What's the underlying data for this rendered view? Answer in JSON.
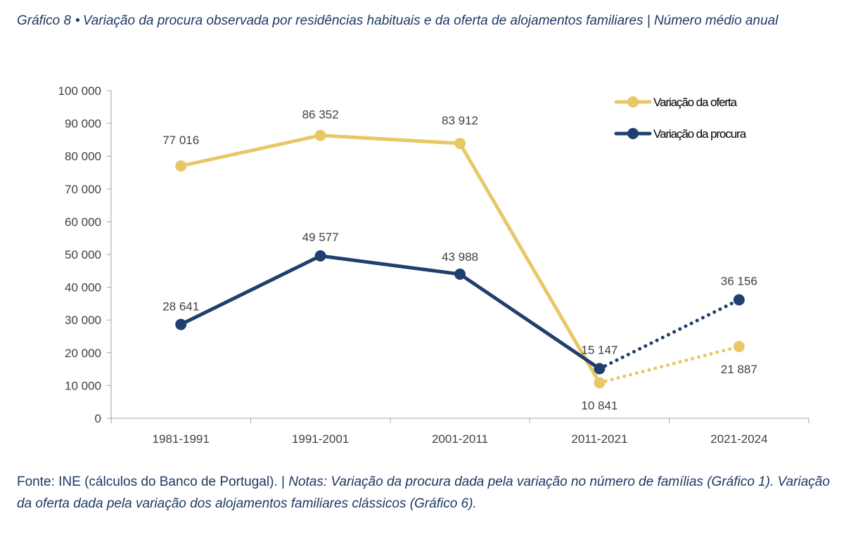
{
  "header": {
    "label": "Gráfico 8",
    "bullet": "•",
    "title": "Variação da procura observada por residências habituais e da oferta de alojamentos familiares | Número médio anual"
  },
  "footer": {
    "source": "Fonte: INE (cálculos do Banco de Portugal). |",
    "notes_label": "Notas:",
    "notes": "Variação da procura dada pela variação no número de famílias (Gráfico 1). Variação da oferta dada pela variação dos alojamentos familiares clássicos (Gráfico 6)."
  },
  "chart_data": {
    "type": "line",
    "categories": [
      "1981-1991",
      "1991-2001",
      "2001-2011",
      "2011-2021",
      "2021-2024"
    ],
    "ylim": [
      0,
      100000
    ],
    "yticks": [
      0,
      10000,
      20000,
      30000,
      40000,
      50000,
      60000,
      70000,
      80000,
      90000,
      100000
    ],
    "ytick_labels": [
      "0",
      "10 000",
      "20 000",
      "30 000",
      "40 000",
      "50 000",
      "60 000",
      "70 000",
      "80 000",
      "90 000",
      "100 000"
    ],
    "grid": false,
    "legend_position": "top-right",
    "series": [
      {
        "name": "Variação da oferta",
        "color": "#e8c767",
        "values": [
          77016,
          86352,
          83912,
          10841,
          21887
        ],
        "labels": [
          "77 016",
          "86 352",
          "83 912",
          "10 841",
          "21 887"
        ],
        "dotted_last_segment": true
      },
      {
        "name": "Variação da procura",
        "color": "#1f3f6e",
        "values": [
          28641,
          49577,
          43988,
          15147,
          36156
        ],
        "labels": [
          "28 641",
          "49 577",
          "43 988",
          "15 147",
          "36 156"
        ],
        "dotted_last_segment": true
      }
    ]
  }
}
